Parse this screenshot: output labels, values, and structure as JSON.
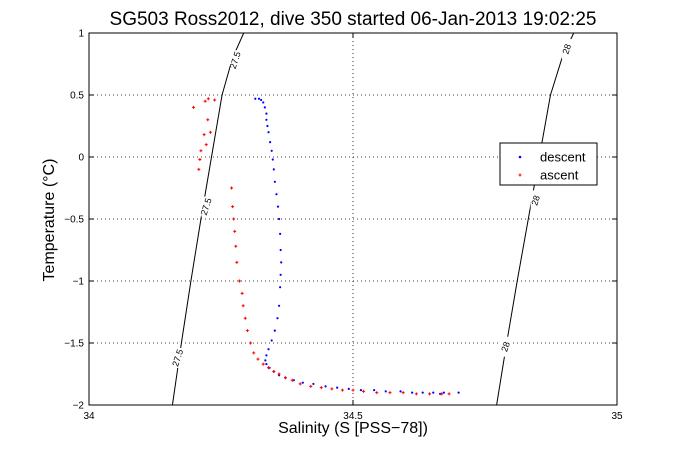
{
  "chart_data": {
    "type": "scatter",
    "title": "SG503 Ross2012, dive 350 started 06-Jan-2013 19:02:25",
    "xlabel": "Salinity (S [PSS−78])",
    "ylabel": "Temperature (°C)",
    "xlim": [
      34,
      35
    ],
    "ylim": [
      -2,
      1
    ],
    "x_ticks": [
      34,
      34.5,
      35
    ],
    "x_tick_labels": [
      "34",
      "34.5",
      "35"
    ],
    "y_ticks": [
      -2,
      -1.5,
      -1,
      -0.5,
      0,
      0.5,
      1
    ],
    "y_tick_labels": [
      "−2",
      "−1.5",
      "−1",
      "−0.5",
      "0",
      "0.5",
      "1"
    ],
    "grid": true,
    "legend_position": "right",
    "series": [
      {
        "name": "descent",
        "color": "#0000ff",
        "marker": "dot",
        "x": [
          34.315,
          34.322,
          34.326,
          34.33,
          34.333,
          34.336,
          34.336,
          34.338,
          34.34,
          34.343,
          34.346,
          34.348,
          34.35,
          34.352,
          34.355,
          34.358,
          34.36,
          34.362,
          34.363,
          34.364,
          34.363,
          34.362,
          34.36,
          34.357,
          34.352,
          34.346,
          34.34,
          34.336,
          34.334,
          34.336,
          34.342,
          34.35,
          34.36,
          34.372,
          34.388,
          34.405,
          34.425,
          34.448,
          34.47,
          34.492,
          34.515,
          34.54,
          34.562,
          34.59,
          34.612,
          34.632,
          34.652,
          34.665,
          34.672,
          34.7
        ],
        "y": [
          0.47,
          0.47,
          0.46,
          0.44,
          0.4,
          0.35,
          0.3,
          0.25,
          0.2,
          0.12,
          0.05,
          -0.02,
          -0.1,
          -0.2,
          -0.3,
          -0.4,
          -0.5,
          -0.62,
          -0.75,
          -0.85,
          -0.95,
          -1.05,
          -1.2,
          -1.3,
          -1.4,
          -1.48,
          -1.55,
          -1.6,
          -1.64,
          -1.67,
          -1.7,
          -1.73,
          -1.76,
          -1.78,
          -1.8,
          -1.82,
          -1.83,
          -1.85,
          -1.86,
          -1.87,
          -1.88,
          -1.88,
          -1.89,
          -1.89,
          -1.9,
          -1.9,
          -1.9,
          -1.91,
          -1.9,
          -1.9
        ]
      },
      {
        "name": "ascent",
        "color": "#ff0000",
        "marker": "plus",
        "x": [
          34.198,
          34.22,
          34.226,
          34.238,
          34.225,
          34.23,
          34.218,
          34.222,
          34.212,
          34.21,
          34.208,
          34.27,
          34.272,
          34.274,
          34.276,
          34.278,
          34.28,
          34.285,
          34.29,
          34.292,
          34.296,
          34.3,
          34.306,
          34.312,
          34.32,
          34.33,
          34.34,
          34.35,
          34.36,
          34.372,
          34.385,
          34.4,
          34.42,
          34.44,
          34.46,
          34.48,
          34.5,
          34.52,
          34.545,
          34.57,
          34.595,
          34.62,
          34.645,
          34.668,
          34.682
        ],
        "y": [
          0.4,
          0.45,
          0.47,
          0.46,
          0.3,
          0.2,
          0.18,
          0.1,
          0.05,
          -0.02,
          -0.1,
          -0.25,
          -0.4,
          -0.5,
          -0.6,
          -0.72,
          -0.85,
          -1.0,
          -1.1,
          -1.2,
          -1.3,
          -1.4,
          -1.5,
          -1.58,
          -1.63,
          -1.67,
          -1.7,
          -1.73,
          -1.75,
          -1.78,
          -1.8,
          -1.83,
          -1.85,
          -1.86,
          -1.87,
          -1.88,
          -1.88,
          -1.89,
          -1.9,
          -1.9,
          -1.9,
          -1.91,
          -1.91,
          -1.91,
          -1.91
        ]
      }
    ],
    "contours": [
      {
        "label": "27.5",
        "color": "#000000",
        "x": [
          34.158,
          34.175,
          34.193,
          34.212,
          34.232,
          34.252,
          34.272,
          34.293
        ],
        "y": [
          -2,
          -1.5,
          -1,
          -0.5,
          0,
          0.5,
          0.8,
          1
        ],
        "label_at": [
          [
            34.277,
            0.78
          ],
          [
            34.222,
            -0.4
          ],
          [
            34.168,
            -1.62
          ]
        ]
      },
      {
        "label": "28",
        "color": "#000000",
        "x": [
          34.772,
          34.791,
          34.811,
          34.832,
          34.853,
          34.874,
          34.896,
          34.918
        ],
        "y": [
          -2,
          -1.5,
          -1,
          -0.5,
          0,
          0.5,
          0.8,
          1
        ],
        "label_at": [
          [
            34.905,
            0.87
          ],
          [
            34.846,
            -0.35
          ],
          [
            34.789,
            -1.53
          ]
        ]
      }
    ]
  }
}
